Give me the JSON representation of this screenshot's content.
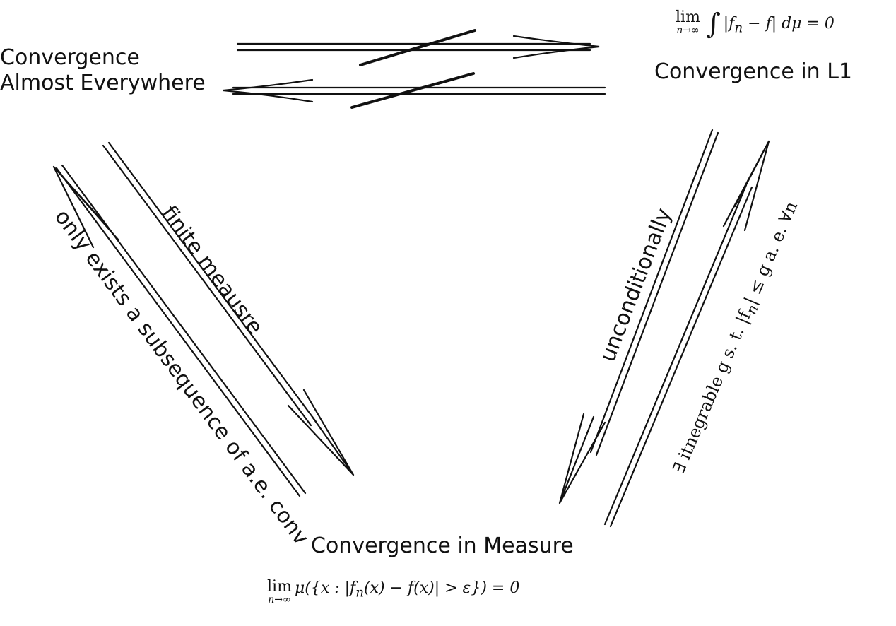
{
  "nodes": {
    "ae_line1": "Convergence",
    "ae_line2": "Almost Everywhere",
    "l1": "Convergence in L1",
    "measure": "Convergence in Measure"
  },
  "formulas": {
    "l1_lim": "lim",
    "l1_sub": "n→∞",
    "l1_int": "∫",
    "l1_body": "|f",
    "l1_n": "n",
    "l1_rest": " − f|  dμ = 0",
    "measure_lim": "lim",
    "measure_sub": "n→∞",
    "measure_body": "μ({x : |f",
    "measure_n": "n",
    "measure_rest": "(x) − f(x)| > ε}) = 0"
  },
  "edge_labels": {
    "subsequence": "only exists a subsequence of a.e. conv",
    "finite": "finite meausre",
    "unconditional": "unconditionally",
    "dominated": "∃ itnegrable g s. t. |f",
    "dominated_n": "n",
    "dominated_rest": "| ≤ g a. e. ∀n"
  },
  "arrows": [
    {
      "from": "Convergence Almost Everywhere",
      "to": "Convergence in L1",
      "negated": true
    },
    {
      "from": "Convergence in L1",
      "to": "Convergence Almost Everywhere",
      "negated": true
    },
    {
      "from": "Convergence in Measure",
      "to": "Convergence Almost Everywhere",
      "label": "only exists a subsequence of a.e. conv"
    },
    {
      "from": "Convergence Almost Everywhere",
      "to": "Convergence in Measure",
      "label": "finite meausre"
    },
    {
      "from": "Convergence in L1",
      "to": "Convergence in Measure",
      "label": "unconditionally"
    },
    {
      "from": "Convergence in Measure",
      "to": "Convergence in L1",
      "label": "∃ itnegrable g s. t. |f_n| ≤ g a. e. ∀n"
    }
  ]
}
